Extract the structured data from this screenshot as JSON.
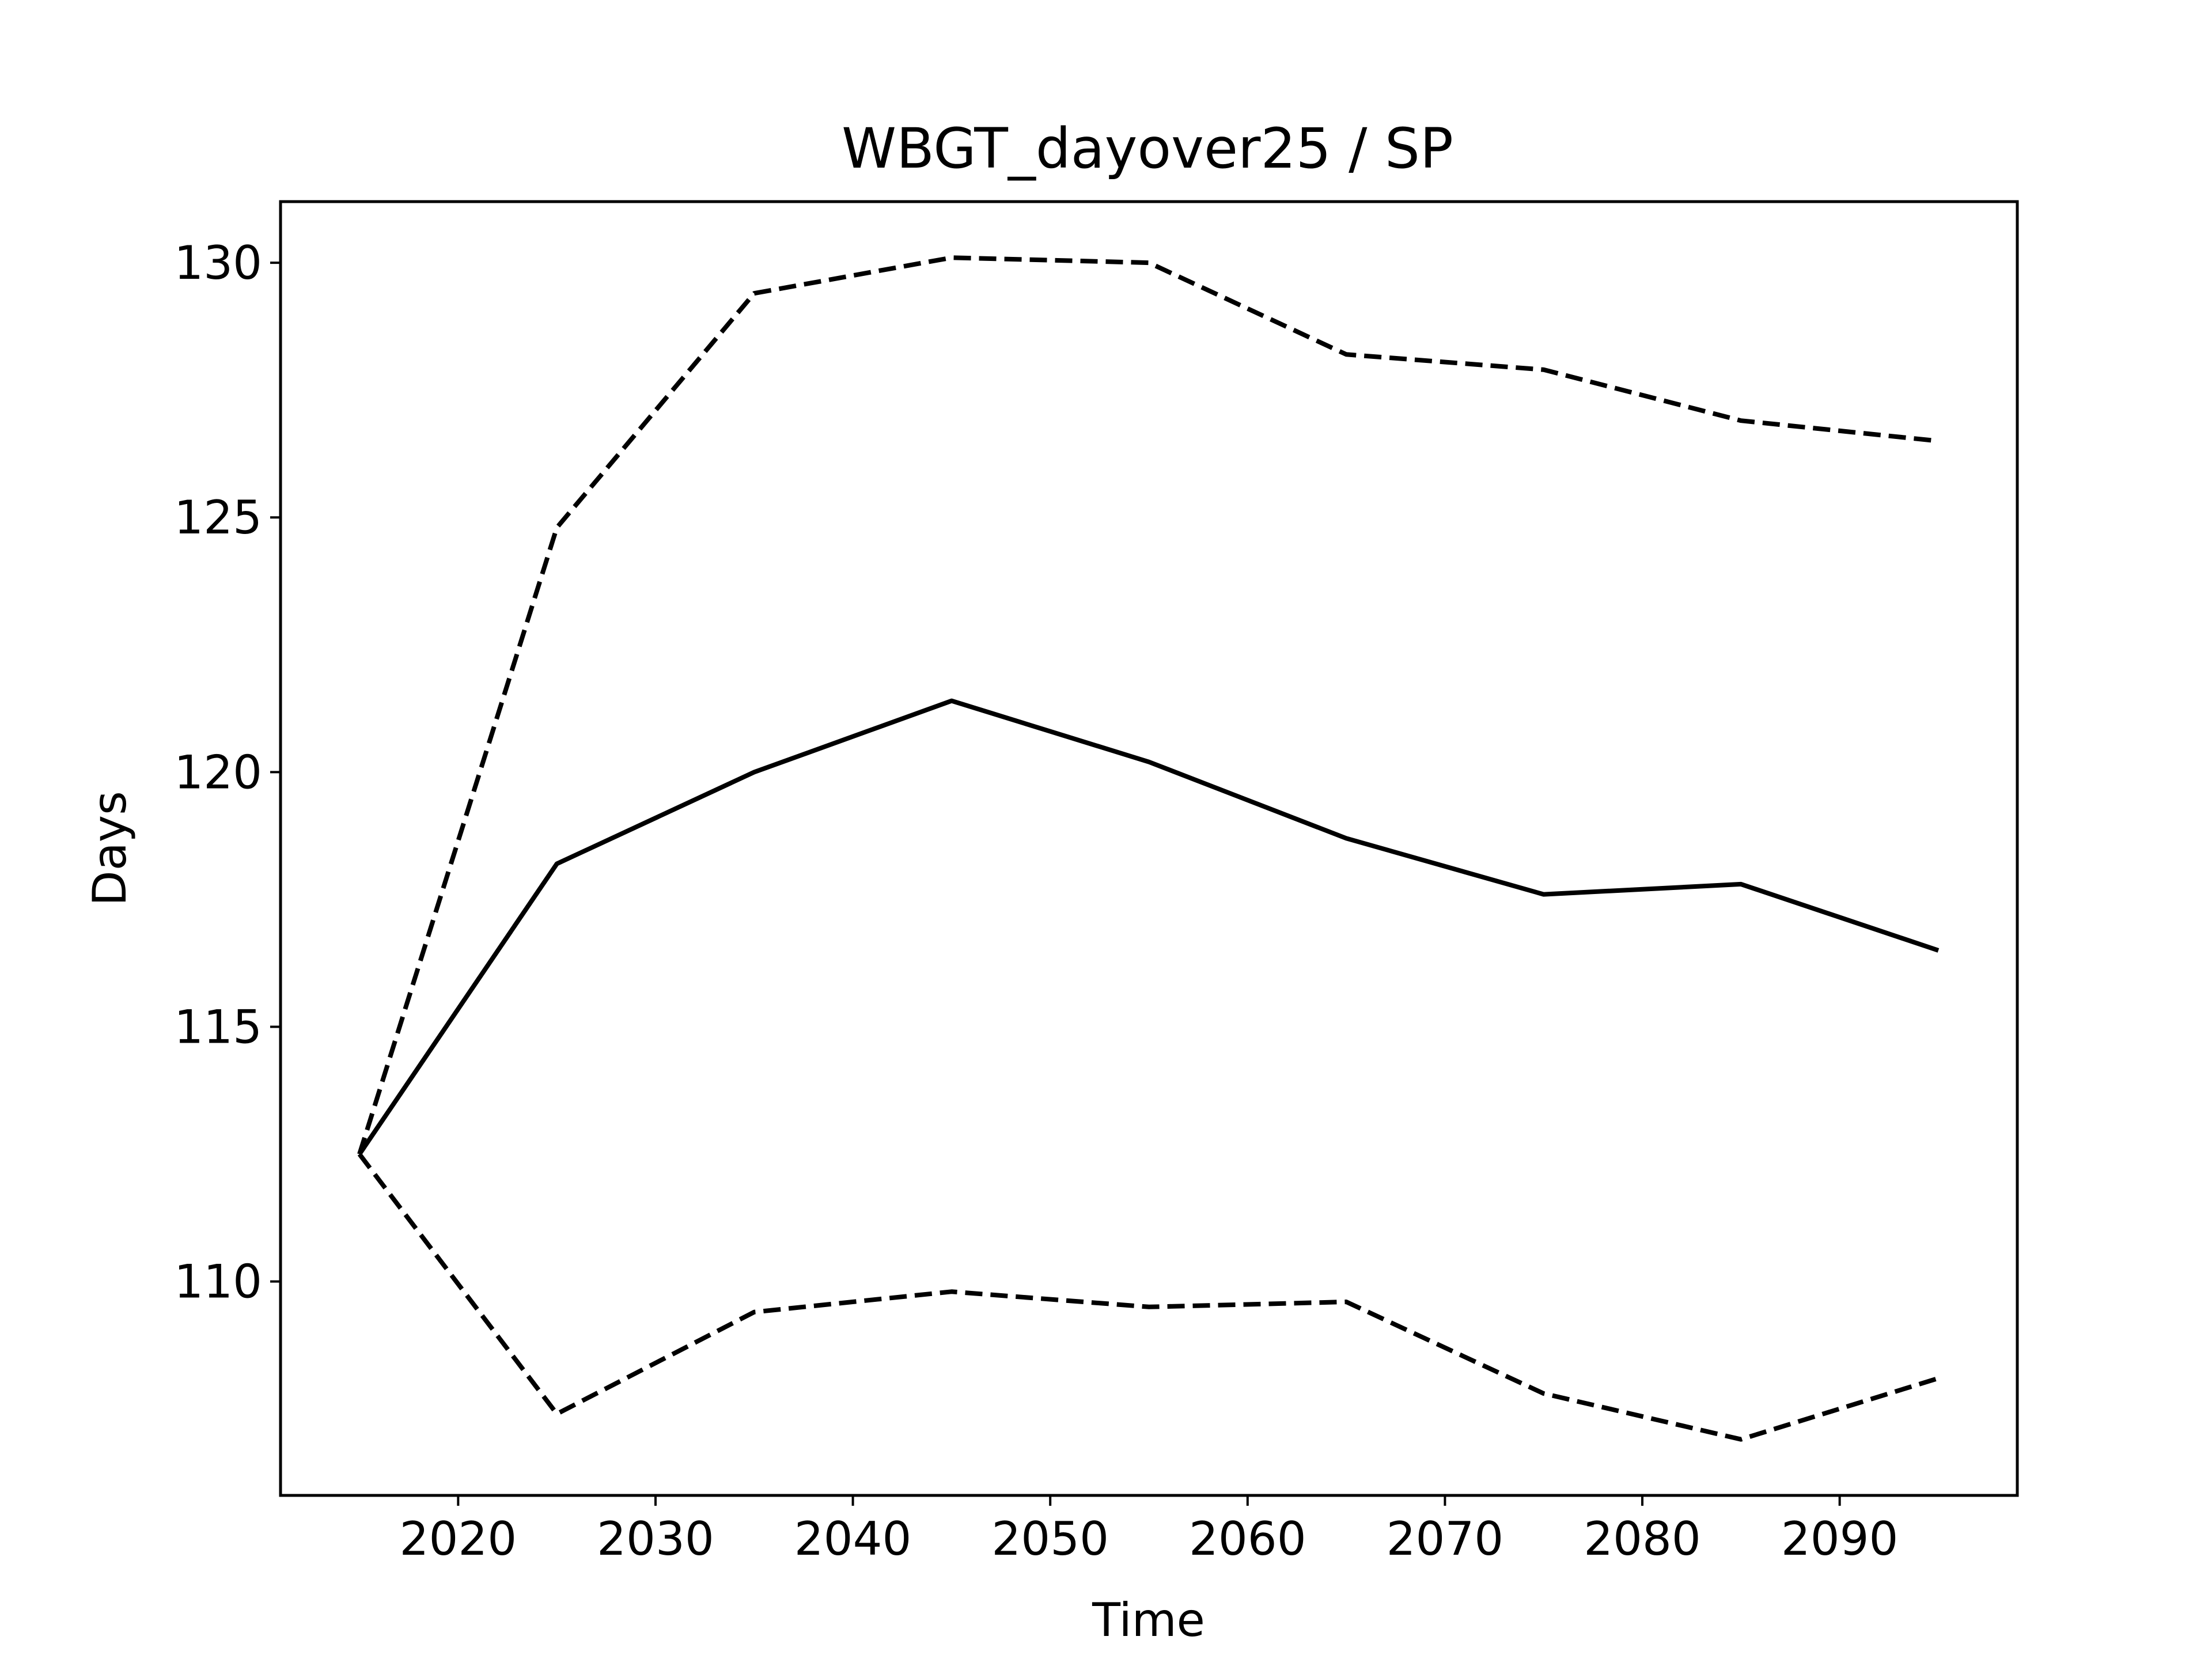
{
  "chart_data": {
    "type": "line",
    "title": "WBGT_dayover25 / SP",
    "xlabel": "Time",
    "ylabel": "Days",
    "xlim": [
      2011,
      2099
    ],
    "ylim": [
      105.8,
      131.2
    ],
    "xticks": [
      2020,
      2030,
      2040,
      2050,
      2060,
      2070,
      2080,
      2090
    ],
    "yticks": [
      110,
      115,
      120,
      125,
      130
    ],
    "grid": false,
    "x": [
      2015,
      2025,
      2035,
      2045,
      2055,
      2065,
      2075,
      2085,
      2095
    ],
    "series": [
      {
        "values": [
          112.5,
          124.8,
          129.4,
          130.1,
          130.0,
          128.2,
          127.9,
          126.9,
          126.5
        ],
        "style": "dashed",
        "color": "#000000"
      },
      {
        "values": [
          112.5,
          118.2,
          120.0,
          121.4,
          120.2,
          118.7,
          117.6,
          117.8,
          116.5
        ],
        "style": "solid",
        "color": "#000000"
      },
      {
        "values": [
          112.5,
          107.4,
          109.4,
          109.8,
          109.5,
          109.6,
          107.8,
          106.9,
          108.1
        ],
        "style": "dashed",
        "color": "#000000"
      }
    ]
  }
}
